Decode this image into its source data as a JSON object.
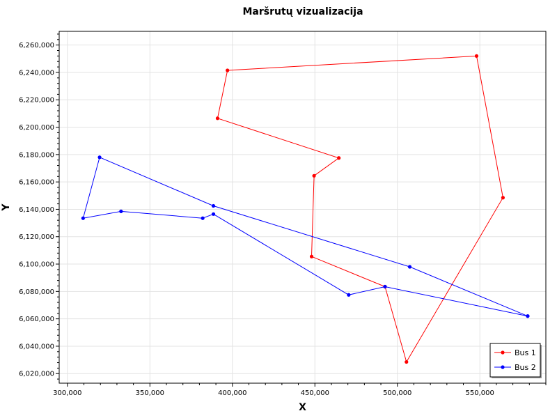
{
  "chart_data": {
    "type": "line",
    "title": "Maršrutų vizualizacija",
    "xlabel": "X",
    "ylabel": "Y",
    "xlim": [
      295000,
      590000
    ],
    "ylim": [
      6013000,
      6270000
    ],
    "x_ticks": [
      {
        "value": 300000,
        "label": "300,000"
      },
      {
        "value": 350000,
        "label": "350,000"
      },
      {
        "value": 400000,
        "label": "400,000"
      },
      {
        "value": 450000,
        "label": "450,000"
      },
      {
        "value": 500000,
        "label": "500,000"
      },
      {
        "value": 550000,
        "label": "550,000"
      }
    ],
    "y_ticks": [
      {
        "value": 6020000,
        "label": "6,020,000"
      },
      {
        "value": 6040000,
        "label": "6,040,000"
      },
      {
        "value": 6060000,
        "label": "6,060,000"
      },
      {
        "value": 6080000,
        "label": "6,080,000"
      },
      {
        "value": 6100000,
        "label": "6,100,000"
      },
      {
        "value": 6120000,
        "label": "6,120,000"
      },
      {
        "value": 6140000,
        "label": "6,140,000"
      },
      {
        "value": 6160000,
        "label": "6,160,000"
      },
      {
        "value": 6180000,
        "label": "6,180,000"
      },
      {
        "value": 6200000,
        "label": "6,200,000"
      },
      {
        "value": 6220000,
        "label": "6,220,000"
      },
      {
        "value": 6240000,
        "label": "6,240,000"
      },
      {
        "value": 6260000,
        "label": "6,260,000"
      }
    ],
    "grid": true,
    "legend_position": "bottom-right",
    "series": [
      {
        "name": "Bus 1",
        "color": "#ff0000",
        "points": [
          [
            492500,
            6083500
          ],
          [
            448000,
            6105500
          ],
          [
            449500,
            6164500
          ],
          [
            464500,
            6177500
          ],
          [
            391000,
            6206500
          ],
          [
            397000,
            6241500
          ],
          [
            548000,
            6252000
          ],
          [
            564000,
            6148500
          ],
          [
            505500,
            6028500
          ],
          [
            492500,
            6083500
          ]
        ]
      },
      {
        "name": "Bus 2",
        "color": "#0000ff",
        "points": [
          [
            579000,
            6062000
          ],
          [
            492500,
            6083500
          ],
          [
            470500,
            6077500
          ],
          [
            388500,
            6136500
          ],
          [
            382000,
            6133500
          ],
          [
            332500,
            6138500
          ],
          [
            309500,
            6133500
          ],
          [
            319500,
            6178000
          ],
          [
            388500,
            6142500
          ],
          [
            507500,
            6098000
          ],
          [
            579000,
            6062000
          ]
        ]
      }
    ]
  }
}
